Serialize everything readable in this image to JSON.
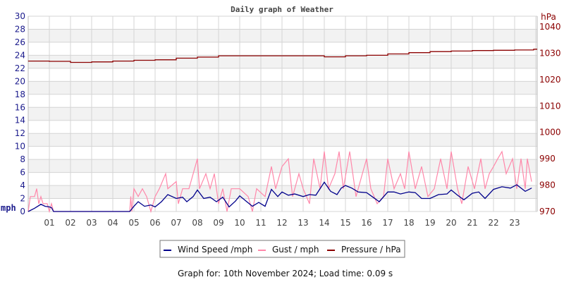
{
  "chart_data": {
    "type": "line",
    "title": "Daily graph of Weather",
    "left_axis": {
      "unit": "mph",
      "range": [
        0,
        30
      ],
      "ticks": [
        0,
        2,
        4,
        6,
        8,
        10,
        12,
        14,
        16,
        18,
        20,
        22,
        24,
        26,
        28,
        30
      ],
      "color": "#1a1a8c"
    },
    "right_axis": {
      "unit": "hPa",
      "range": [
        970,
        1044
      ],
      "ticks": [
        970,
        980,
        990,
        1000,
        1010,
        1020,
        1030,
        1040
      ],
      "color": "#8b0000"
    },
    "x_axis": {
      "range": [
        0,
        24
      ],
      "ticks": [
        "01",
        "02",
        "03",
        "04",
        "05",
        "06",
        "07",
        "08",
        "09",
        "10",
        "11",
        "12",
        "13",
        "14",
        "15",
        "16",
        "17",
        "18",
        "19",
        "20",
        "21",
        "22",
        "23"
      ]
    },
    "grid": true,
    "legend_placement": "bottom",
    "series": [
      {
        "name": "Wind Speed /mph",
        "axis": "left",
        "color": "#00008b",
        "points": [
          [
            0,
            0
          ],
          [
            0.3,
            0.5
          ],
          [
            0.6,
            1.1
          ],
          [
            0.8,
            0.8
          ],
          [
            1.0,
            0.7
          ],
          [
            1.1,
            0.6
          ],
          [
            1.2,
            0
          ],
          [
            4.8,
            0
          ],
          [
            5.0,
            0.8
          ],
          [
            5.2,
            1.5
          ],
          [
            5.5,
            0.8
          ],
          [
            5.8,
            1.0
          ],
          [
            6.0,
            0.7
          ],
          [
            6.3,
            1.5
          ],
          [
            6.6,
            2.6
          ],
          [
            7.0,
            2.0
          ],
          [
            7.3,
            2.2
          ],
          [
            7.5,
            1.5
          ],
          [
            7.8,
            2.3
          ],
          [
            8.0,
            3.3
          ],
          [
            8.3,
            2.0
          ],
          [
            8.6,
            2.2
          ],
          [
            8.9,
            1.5
          ],
          [
            9.2,
            2.2
          ],
          [
            9.5,
            0.7
          ],
          [
            9.8,
            1.6
          ],
          [
            10.0,
            2.4
          ],
          [
            10.3,
            1.6
          ],
          [
            10.6,
            0.8
          ],
          [
            10.9,
            1.4
          ],
          [
            11.2,
            0.8
          ],
          [
            11.5,
            3.4
          ],
          [
            11.8,
            2.3
          ],
          [
            12.0,
            3.0
          ],
          [
            12.3,
            2.5
          ],
          [
            12.6,
            2.7
          ],
          [
            13.0,
            2.3
          ],
          [
            13.3,
            2.6
          ],
          [
            13.6,
            2.5
          ],
          [
            14.0,
            4.5
          ],
          [
            14.3,
            3.1
          ],
          [
            14.6,
            2.6
          ],
          [
            14.8,
            3.6
          ],
          [
            15.0,
            4.0
          ],
          [
            15.3,
            3.6
          ],
          [
            15.6,
            3.0
          ],
          [
            16.0,
            2.9
          ],
          [
            16.3,
            2.2
          ],
          [
            16.6,
            1.5
          ],
          [
            17.0,
            3.0
          ],
          [
            17.3,
            3.0
          ],
          [
            17.6,
            2.7
          ],
          [
            18.0,
            3.0
          ],
          [
            18.3,
            2.9
          ],
          [
            18.6,
            2.0
          ],
          [
            19.0,
            2.0
          ],
          [
            19.4,
            2.6
          ],
          [
            19.8,
            2.7
          ],
          [
            20.0,
            3.3
          ],
          [
            20.3,
            2.5
          ],
          [
            20.6,
            1.8
          ],
          [
            21.0,
            2.8
          ],
          [
            21.3,
            3.0
          ],
          [
            21.6,
            2.0
          ],
          [
            22.0,
            3.4
          ],
          [
            22.4,
            3.8
          ],
          [
            22.8,
            3.6
          ],
          [
            23.1,
            4.1
          ],
          [
            23.5,
            3.1
          ],
          [
            23.8,
            3.6
          ]
        ]
      },
      {
        "name": "Gust / mph",
        "axis": "left",
        "color": "#ff88aa",
        "points": [
          [
            0,
            0
          ],
          [
            0.1,
            2.3
          ],
          [
            0.3,
            2.3
          ],
          [
            0.4,
            3.5
          ],
          [
            0.5,
            1.2
          ],
          [
            0.6,
            2.3
          ],
          [
            0.7,
            1.2
          ],
          [
            0.9,
            1.2
          ],
          [
            1.0,
            0
          ],
          [
            1.1,
            1.2
          ],
          [
            1.2,
            0
          ],
          [
            4.8,
            0
          ],
          [
            4.85,
            2.3
          ],
          [
            4.9,
            0
          ],
          [
            5.0,
            3.5
          ],
          [
            5.2,
            2.3
          ],
          [
            5.4,
            3.5
          ],
          [
            5.6,
            2.3
          ],
          [
            5.8,
            0
          ],
          [
            6.0,
            2.3
          ],
          [
            6.2,
            3.5
          ],
          [
            6.5,
            5.8
          ],
          [
            6.6,
            3.5
          ],
          [
            7.0,
            4.6
          ],
          [
            7.1,
            1.2
          ],
          [
            7.3,
            3.5
          ],
          [
            7.6,
            3.5
          ],
          [
            8.0,
            8.1
          ],
          [
            8.1,
            3.5
          ],
          [
            8.4,
            5.8
          ],
          [
            8.6,
            3.5
          ],
          [
            8.8,
            5.8
          ],
          [
            9.0,
            1.2
          ],
          [
            9.2,
            3.5
          ],
          [
            9.4,
            0
          ],
          [
            9.6,
            3.5
          ],
          [
            10.0,
            3.5
          ],
          [
            10.4,
            2.3
          ],
          [
            10.6,
            0
          ],
          [
            10.8,
            3.5
          ],
          [
            11.2,
            2.3
          ],
          [
            11.5,
            6.9
          ],
          [
            11.7,
            3.5
          ],
          [
            12.0,
            6.9
          ],
          [
            12.3,
            8.1
          ],
          [
            12.5,
            2.3
          ],
          [
            12.8,
            5.8
          ],
          [
            13.0,
            3.5
          ],
          [
            13.3,
            1.2
          ],
          [
            13.5,
            8.1
          ],
          [
            13.8,
            3.5
          ],
          [
            14.0,
            9.2
          ],
          [
            14.2,
            3.5
          ],
          [
            14.5,
            5.8
          ],
          [
            14.7,
            9.2
          ],
          [
            14.9,
            3.5
          ],
          [
            15.2,
            9.2
          ],
          [
            15.5,
            2.3
          ],
          [
            15.8,
            5.8
          ],
          [
            16.0,
            8.1
          ],
          [
            16.2,
            3.5
          ],
          [
            16.5,
            1.2
          ],
          [
            16.8,
            2.3
          ],
          [
            17.0,
            8.1
          ],
          [
            17.3,
            3.5
          ],
          [
            17.6,
            5.8
          ],
          [
            17.8,
            3.5
          ],
          [
            18.0,
            9.2
          ],
          [
            18.3,
            3.5
          ],
          [
            18.6,
            6.9
          ],
          [
            18.9,
            2.3
          ],
          [
            19.2,
            3.5
          ],
          [
            19.5,
            8.1
          ],
          [
            19.8,
            3.5
          ],
          [
            20.0,
            9.2
          ],
          [
            20.3,
            3.5
          ],
          [
            20.5,
            1.2
          ],
          [
            20.8,
            6.9
          ],
          [
            21.1,
            3.5
          ],
          [
            21.4,
            8.1
          ],
          [
            21.6,
            3.5
          ],
          [
            21.8,
            5.8
          ],
          [
            22.0,
            6.9
          ],
          [
            22.2,
            8.1
          ],
          [
            22.4,
            9.2
          ],
          [
            22.6,
            5.8
          ],
          [
            22.9,
            8.1
          ],
          [
            23.1,
            3.5
          ],
          [
            23.3,
            8.1
          ],
          [
            23.5,
            3.5
          ],
          [
            23.6,
            8.1
          ],
          [
            23.8,
            4.6
          ]
        ]
      },
      {
        "name": "Pressure / hPa",
        "axis": "right",
        "color": "#8b0000",
        "points": [
          [
            0,
            1027.0
          ],
          [
            1.0,
            1026.9
          ],
          [
            2.0,
            1026.5
          ],
          [
            3.0,
            1026.7
          ],
          [
            4.0,
            1027.0
          ],
          [
            5.0,
            1027.3
          ],
          [
            6.0,
            1027.5
          ],
          [
            7.0,
            1028.1
          ],
          [
            8.0,
            1028.5
          ],
          [
            9.0,
            1029.0
          ],
          [
            10.0,
            1029.0
          ],
          [
            11.0,
            1029.0
          ],
          [
            12.0,
            1029.0
          ],
          [
            13.0,
            1029.0
          ],
          [
            14.0,
            1028.6
          ],
          [
            15.0,
            1029.0
          ],
          [
            16.0,
            1029.2
          ],
          [
            17.0,
            1029.7
          ],
          [
            18.0,
            1030.2
          ],
          [
            19.0,
            1030.6
          ],
          [
            20.0,
            1030.8
          ],
          [
            21.0,
            1031.0
          ],
          [
            22.0,
            1031.1
          ],
          [
            23.0,
            1031.2
          ],
          [
            23.9,
            1031.5
          ]
        ]
      }
    ]
  },
  "footer": "Graph for: 10th November 2024; Load time: 0.09 s"
}
